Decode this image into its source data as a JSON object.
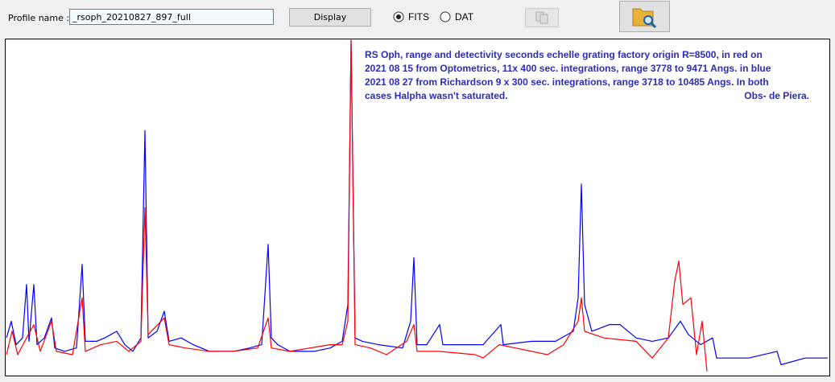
{
  "ui": {
    "profile_label": "Profile name :",
    "profile_value": "_rsoph_20210827_897_full",
    "display_button": "Display",
    "fits_label": "FITS",
    "dat_label": "DAT"
  },
  "chart_data": {
    "type": "line",
    "annotation": [
      "RS Oph, range and detectivity  seconds echelle grating factory origin R=8500, in red on",
      "2021 08 15 from Optometrics,  11x 400 sec. integrations, range 3778 to 9471 Angs. in blue",
      "2021 08 27 from Richardson 9 x 300 sec. integrations, range 3718 to 10485 Angs. In both",
      "cases Halpha wasn't saturated.",
      "Obs- de Piera."
    ],
    "xlim": [
      7,
      1029
    ],
    "ylim": [
      0,
      100
    ],
    "series": [
      {
        "color": "#0000ff",
        "x": [
          8,
          14,
          20,
          28,
          33,
          36,
          42,
          46,
          55,
          64,
          68,
          80,
          95,
          102,
          106,
          120,
          130,
          145,
          155,
          165,
          175,
          180,
          184,
          195,
          204,
          210,
          225,
          240,
          260,
          290,
          310,
          325,
          333,
          337,
          345,
          360,
          390,
          410,
          425,
          432,
          436,
          441,
          450,
          470,
          500,
          510,
          514,
          518,
          530,
          546,
          550,
          580,
          600,
          622,
          625,
          660,
          690,
          712,
          718,
          722,
          726,
          735,
          757,
          770,
          790,
          810,
          830,
          845,
          855,
          870,
          885,
          890,
          900,
          930,
          965,
          970,
          1000,
          1028
        ],
        "values": [
          11,
          16,
          9,
          11,
          27,
          10,
          27,
          9,
          11,
          17,
          8,
          7,
          8,
          33,
          10,
          10,
          11,
          13,
          9,
          7,
          11,
          73,
          11,
          13,
          19,
          10,
          11,
          9,
          7,
          7,
          8,
          9,
          39,
          11,
          9,
          7,
          7,
          8,
          10,
          21,
          100,
          11,
          10,
          9,
          8,
          16,
          35,
          9,
          9,
          15,
          9,
          9,
          9,
          15,
          9,
          10,
          10,
          13,
          23,
          57,
          21,
          13,
          15,
          15,
          11,
          10,
          11,
          16,
          12,
          9,
          11,
          5,
          5,
          5,
          7,
          3,
          5,
          5
        ]
      },
      {
        "color": "#ff0000",
        "x": [
          8,
          15,
          22,
          33,
          42,
          50,
          64,
          70,
          90,
          102,
          106,
          125,
          145,
          160,
          175,
          180,
          184,
          204,
          210,
          230,
          260,
          290,
          320,
          333,
          337,
          360,
          410,
          425,
          432,
          436,
          441,
          460,
          480,
          505,
          514,
          518,
          545,
          590,
          600,
          620,
          640,
          680,
          700,
          718,
          722,
          726,
          750,
          790,
          810,
          830,
          838,
          843,
          848,
          858,
          865,
          872,
          878
        ],
        "values": [
          6,
          13,
          6,
          11,
          15,
          7,
          16,
          7,
          6,
          23,
          7,
          9,
          10,
          7,
          10,
          50,
          12,
          17,
          9,
          8,
          7,
          7,
          8,
          17,
          8,
          7,
          9,
          9,
          16,
          100,
          9,
          8,
          6,
          10,
          15,
          7,
          7,
          6,
          5,
          9,
          8,
          6,
          9,
          16,
          23,
          13,
          11,
          10,
          5,
          11,
          28,
          34,
          21,
          23,
          6,
          16,
          1
        ]
      }
    ]
  }
}
